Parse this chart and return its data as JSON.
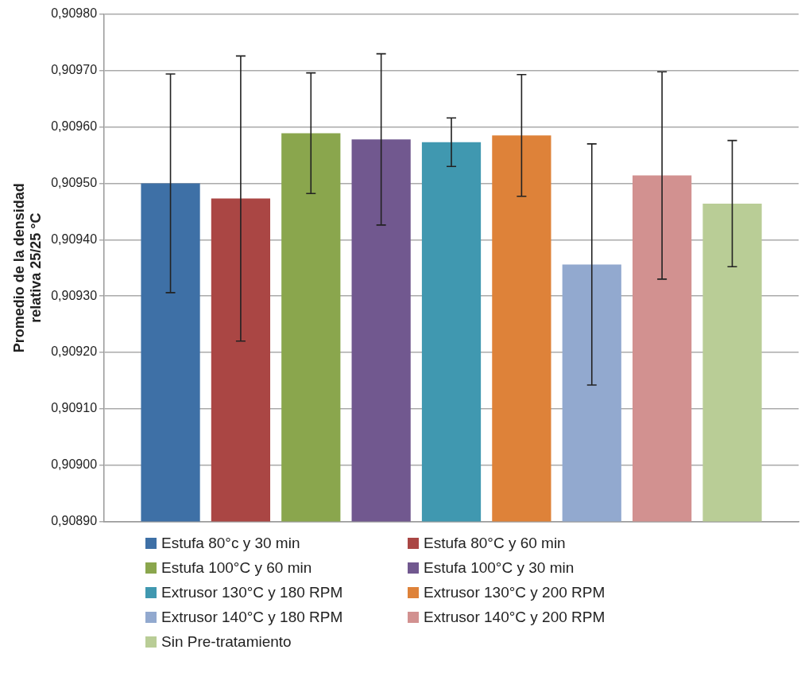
{
  "chart_data": {
    "type": "bar",
    "ylabel": "Promedio de la densidad relativa 25/25 °C",
    "categories": [
      null
    ],
    "series": [
      {
        "name": "Estufa 80°c y 30 min",
        "color": "#3e70a6",
        "values": [
          0.9095
        ],
        "errors": [
          0.000194
        ]
      },
      {
        "name": "Estufa 80°C y 60 min",
        "color": "#aa4644",
        "values": [
          0.909473
        ],
        "errors": [
          0.000253
        ]
      },
      {
        "name": "Estufa 100°C y 60 min",
        "color": "#8aa64d",
        "values": [
          0.909589
        ],
        "errors": [
          0.000107
        ]
      },
      {
        "name": "Estufa 100°C y 30 min",
        "color": "#71588f",
        "values": [
          0.909578
        ],
        "errors": [
          0.000152
        ]
      },
      {
        "name": "Extrusor 130°C y 180 RPM",
        "color": "#4098b0",
        "values": [
          0.909573
        ],
        "errors": [
          4.3e-05
        ]
      },
      {
        "name": "Extrusor 130°C y 200 RPM",
        "color": "#de8239",
        "values": [
          0.909585
        ],
        "errors": [
          0.000108
        ]
      },
      {
        "name": "Extrusor 140°C y 180 RPM",
        "color": "#92a9cf",
        "values": [
          0.909356
        ],
        "errors": [
          0.000214
        ]
      },
      {
        "name": "Extrusor 140°C y 200 RPM",
        "color": "#d29190",
        "values": [
          0.909514
        ],
        "errors": [
          0.000184
        ]
      },
      {
        "name": "Sin Pre-tratamiento",
        "color": "#b9cd96",
        "values": [
          0.909464
        ],
        "errors": [
          0.000112
        ]
      }
    ],
    "ylim": [
      0.9089,
      0.9098
    ],
    "yticks": [
      {
        "value": 0.9089,
        "label": "0,90890"
      },
      {
        "value": 0.909,
        "label": "0,90900"
      },
      {
        "value": 0.9091,
        "label": "0,90910"
      },
      {
        "value": 0.9092,
        "label": "0,90920"
      },
      {
        "value": 0.9093,
        "label": "0,90930"
      },
      {
        "value": 0.9094,
        "label": "0,90940"
      },
      {
        "value": 0.9095,
        "label": "0,90950"
      },
      {
        "value": 0.9096,
        "label": "0,90960"
      },
      {
        "value": 0.9097,
        "label": "0,90970"
      },
      {
        "value": 0.9098,
        "label": "0,90980"
      }
    ],
    "grid": "y",
    "legend": "bottom"
  }
}
